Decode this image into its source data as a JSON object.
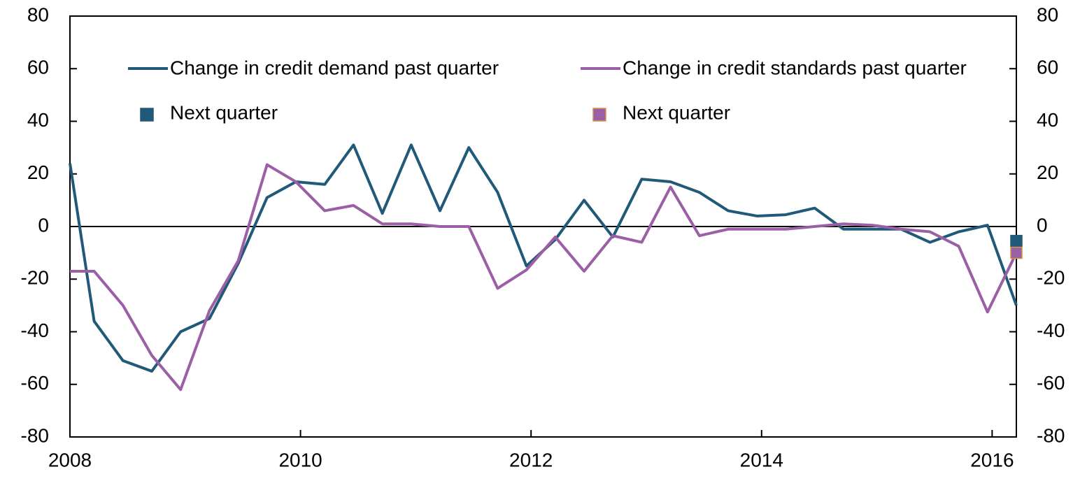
{
  "chart_data": {
    "type": "line",
    "x": [
      2008,
      2008.21,
      2008.46,
      2008.71,
      2008.96,
      2009.21,
      2009.46,
      2009.71,
      2009.96,
      2010.21,
      2010.46,
      2010.71,
      2010.96,
      2011.21,
      2011.46,
      2011.71,
      2011.96,
      2012.21,
      2012.46,
      2012.71,
      2012.96,
      2013.21,
      2013.46,
      2013.71,
      2013.96,
      2014.21,
      2014.46,
      2014.71,
      2014.96,
      2015.21,
      2015.46,
      2015.71,
      2015.96,
      2016.21
    ],
    "series": [
      {
        "name": "Change in credit demand past quarter",
        "color": "#215a78",
        "values": [
          24,
          -36,
          -51,
          -55,
          -40,
          -35,
          -14,
          11,
          17,
          16,
          31,
          5,
          31,
          6,
          30,
          13,
          -15,
          -5,
          10,
          -4,
          18,
          17,
          13,
          6,
          4,
          4.5,
          7,
          -1,
          -1,
          -1,
          -6,
          -2,
          0.5,
          -30
        ]
      },
      {
        "name": "Change in credit standards past quarter",
        "color": "#9b5fa5",
        "values": [
          -17,
          -17,
          -30,
          -49,
          -62,
          -32,
          -13,
          23.5,
          17,
          6,
          8,
          1,
          1,
          0,
          0,
          -23.5,
          -16.5,
          -4,
          -17,
          -3.5,
          -6,
          15,
          -3.5,
          -1,
          -1,
          -1,
          0,
          1,
          0.5,
          -1,
          -2,
          -7.5,
          -32.5,
          -10
        ]
      }
    ],
    "markers": [
      {
        "name": "Next quarter",
        "color": "#215a78",
        "border": "#215a78",
        "x": 2016.21,
        "value": -5.5
      },
      {
        "name": "Next quarter",
        "color": "#9b5fa5",
        "border": "#d9914a",
        "x": 2016.21,
        "value": -10
      }
    ],
    "xlim": [
      2008,
      2016.21
    ],
    "xticks": [
      2008,
      2010,
      2012,
      2014,
      2016
    ],
    "ylim": [
      -80,
      80
    ],
    "yticks": [
      -80,
      -60,
      -40,
      -20,
      0,
      20,
      40,
      60,
      80
    ],
    "y2lim": [
      -80,
      80
    ],
    "y2ticks": [
      -80,
      -60,
      -40,
      -20,
      0,
      20,
      40,
      60,
      80
    ]
  }
}
